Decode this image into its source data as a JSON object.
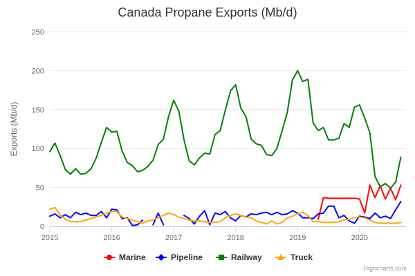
{
  "chart_data": {
    "type": "line",
    "title": "Canada Propane Exports (Mb/d)",
    "ylabel": "Exports (Mb/d)",
    "ylim": [
      0,
      250
    ],
    "yticks": [
      0,
      50,
      100,
      150,
      200,
      250
    ],
    "xlim": [
      2015,
      2020.75
    ],
    "xticks": [
      2015,
      2016,
      2017,
      2018,
      2019,
      2020
    ],
    "xtick_labels": [
      "2015",
      "2016",
      "2017",
      "2018",
      "2019",
      "2020"
    ],
    "grid": "horizontal",
    "legend_position": "bottom-center",
    "credits": "Highcharts.com",
    "series": [
      {
        "name": "Marine",
        "color": "#ff0000",
        "x": [
          2019.333,
          2019.417,
          2019.5,
          2019.583,
          2019.667,
          2019.75,
          2019.833,
          2019.917,
          2020.0,
          2020.083,
          2020.167,
          2020.25,
          2020.333,
          2020.417,
          2020.5,
          2020.583,
          2020.667
        ],
        "values": [
          9,
          37,
          36,
          36,
          36,
          36,
          36,
          36,
          35,
          17,
          53,
          37,
          52,
          35,
          49,
          34,
          53
        ]
      },
      {
        "name": "Pipeline",
        "color": "#0000ff",
        "x": [
          2015.0,
          2015.083,
          2015.167,
          2015.25,
          2015.333,
          2015.417,
          2015.5,
          2015.583,
          2015.667,
          2015.75,
          2015.833,
          2015.917,
          2016.0,
          2016.083,
          2016.167,
          2016.25,
          2016.333,
          2016.417,
          2016.5,
          null,
          2016.667,
          2016.75,
          2016.833,
          null,
          2017.167,
          2017.25,
          2017.333,
          2017.417,
          2017.5,
          2017.583,
          2017.667,
          2017.75,
          2017.833,
          2017.917,
          2018.0,
          2018.083,
          2018.167,
          2018.25,
          2018.333,
          2018.417,
          2018.5,
          2018.583,
          2018.667,
          2018.75,
          2018.833,
          2018.917,
          2019.0,
          2019.083,
          2019.167,
          2019.25,
          2019.333,
          2019.417,
          2019.5,
          2019.583,
          2019.667,
          2019.75,
          2019.833,
          2019.917,
          2020.0,
          2020.083,
          2020.167,
          2020.25,
          2020.333,
          2020.417,
          2020.5,
          2020.583,
          2020.667
        ],
        "values": [
          13,
          16,
          11,
          15,
          11,
          18,
          15,
          17,
          14,
          14,
          19,
          11,
          22,
          21,
          10,
          11,
          1,
          2,
          8,
          null,
          2,
          17,
          2,
          null,
          14,
          10,
          3,
          13,
          20,
          2,
          17,
          15,
          19,
          11,
          7,
          14,
          12,
          16,
          15,
          17,
          18,
          15,
          18,
          15,
          16,
          20,
          17,
          11,
          11,
          10,
          16,
          17,
          26,
          26,
          11,
          14,
          7,
          4,
          13,
          12,
          10,
          17,
          11,
          13,
          10,
          21,
          32
        ]
      },
      {
        "name": "Railway",
        "color": "#008000",
        "x": [
          2015.0,
          2015.083,
          2015.167,
          2015.25,
          2015.333,
          2015.417,
          2015.5,
          2015.583,
          2015.667,
          2015.75,
          2015.833,
          2015.917,
          2016.0,
          2016.083,
          2016.167,
          2016.25,
          2016.333,
          2016.417,
          2016.5,
          2016.583,
          2016.667,
          2016.75,
          2016.833,
          2016.917,
          2017.0,
          2017.083,
          2017.167,
          2017.25,
          2017.333,
          2017.417,
          2017.5,
          2017.583,
          2017.667,
          2017.75,
          2017.833,
          2017.917,
          2018.0,
          2018.083,
          2018.167,
          2018.25,
          2018.333,
          2018.417,
          2018.5,
          2018.583,
          2018.667,
          2018.75,
          2018.833,
          2018.917,
          2019.0,
          2019.083,
          2019.167,
          2019.25,
          2019.333,
          2019.417,
          2019.5,
          2019.583,
          2019.667,
          2019.75,
          2019.833,
          2019.917,
          2020.0,
          2020.083,
          2020.167,
          2020.25,
          2020.333,
          2020.417,
          2020.5,
          2020.583,
          2020.667
        ],
        "values": [
          96,
          107,
          91,
          73,
          67,
          74,
          67,
          68,
          74,
          88,
          108,
          127,
          121,
          122,
          97,
          82,
          78,
          70,
          72,
          77,
          85,
          105,
          112,
          141,
          162,
          148,
          111,
          84,
          79,
          88,
          94,
          93,
          118,
          123,
          149,
          174,
          182,
          152,
          141,
          112,
          106,
          104,
          92,
          91,
          100,
          123,
          146,
          188,
          200,
          186,
          189,
          133,
          123,
          127,
          111,
          111,
          113,
          132,
          127,
          153,
          156,
          139,
          120,
          64,
          51,
          55,
          49,
          57,
          89
        ]
      },
      {
        "name": "Truck",
        "color": "#ffa500",
        "x": [
          2015.0,
          2015.083,
          2015.167,
          2015.25,
          2015.333,
          2015.417,
          2015.5,
          2015.583,
          2015.667,
          2015.75,
          2015.833,
          2015.917,
          2016.0,
          2016.083,
          2016.167,
          2016.25,
          2016.333,
          2016.417,
          2016.5,
          2016.583,
          2016.667,
          2016.75,
          2016.833,
          2016.917,
          2017.0,
          2017.083,
          2017.167,
          2017.25,
          2017.333,
          2017.417,
          2017.5,
          2017.583,
          2017.667,
          2017.75,
          2017.833,
          2017.917,
          2018.0,
          2018.083,
          2018.167,
          2018.25,
          2018.333,
          2018.417,
          2018.5,
          2018.583,
          2018.667,
          2018.75,
          2018.833,
          2018.917,
          2019.0,
          2019.083,
          2019.167,
          2019.25,
          2019.333,
          2019.417,
          2019.5,
          2019.583,
          2019.667,
          2019.75,
          2019.833,
          2019.917,
          2020.0,
          2020.083,
          2020.167,
          2020.25,
          2020.333,
          2020.417,
          2020.5,
          2020.583,
          2020.667
        ],
        "values": [
          22,
          24,
          15,
          9,
          6,
          6,
          6,
          8,
          10,
          12,
          14,
          17,
          19,
          19,
          12,
          10,
          8,
          6,
          4,
          7,
          8,
          11,
          14,
          17,
          15,
          12,
          10,
          8,
          7,
          7,
          6,
          5,
          5,
          6,
          11,
          14,
          16,
          14,
          12,
          11,
          7,
          5,
          3,
          7,
          3,
          5,
          11,
          13,
          16,
          18,
          14,
          6,
          6,
          5,
          5,
          5,
          6,
          8,
          9,
          11,
          12,
          11,
          8,
          5,
          4,
          4,
          4,
          4,
          5
        ]
      }
    ]
  }
}
